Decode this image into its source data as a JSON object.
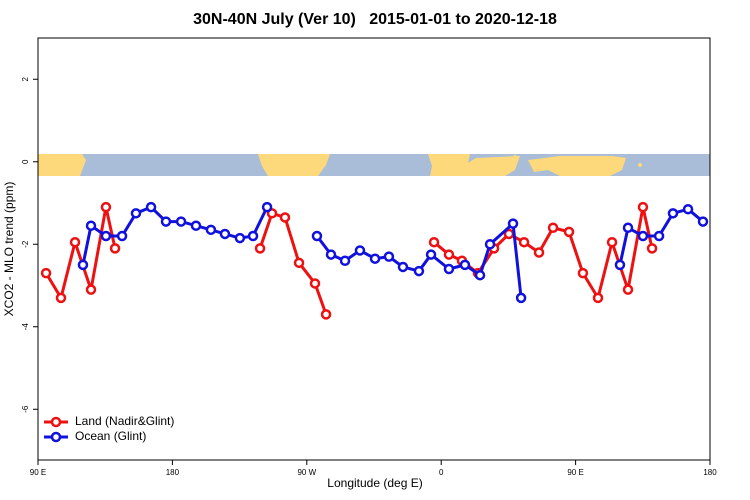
{
  "chart_data": {
    "type": "line",
    "title": "30N-40N July (Ver 10)   2015-01-01 to 2020-12-18",
    "xlabel": "Longitude (deg E)",
    "ylabel": "XCO2 - MLO trend (ppm)",
    "xlim": [
      90,
      540
    ],
    "xticks": [
      {
        "value": 90,
        "label": "90 E"
      },
      {
        "value": 180,
        "label": "180"
      },
      {
        "value": 270,
        "label": "90 W"
      },
      {
        "value": 360,
        "label": "0"
      },
      {
        "value": 450,
        "label": "90 E"
      },
      {
        "value": 540,
        "label": "180"
      }
    ],
    "ylim": [
      -7.23,
      3.0
    ],
    "yticks": [
      -6,
      -4,
      -2,
      0,
      2
    ],
    "legend": "bottom-left",
    "series": [
      {
        "name": "Land (Nadir&Glint)",
        "color": "#ee1111",
        "x": [
          95.4,
          105.4,
          114.8,
          125.5,
          135.5,
          141.6,
          null,
          238.7,
          246.7,
          255.4,
          264.8,
          275.5,
          282.9,
          null,
          355.2,
          365.2,
          373.9,
          384.6,
          395.4,
          405.4,
          415.5,
          425.5,
          434.9,
          445.6,
          454.9,
          465.0,
          474.4,
          485.1,
          495.1,
          501.2
        ],
        "values": [
          -2.7,
          -3.3,
          -1.95,
          -3.1,
          -1.1,
          -2.1,
          null,
          -2.1,
          -1.25,
          -1.35,
          -2.45,
          -2.95,
          -3.7,
          null,
          -1.95,
          -2.25,
          -2.4,
          -2.7,
          -2.1,
          -1.75,
          -1.95,
          -2.2,
          -1.6,
          -1.7,
          -2.7,
          -3.3,
          -1.95,
          -3.1,
          -1.1,
          -2.1
        ]
      },
      {
        "name": "Ocean (Glint)",
        "color": "#1111dd",
        "x": [
          120.1,
          125.5,
          135.5,
          146.3,
          155.6,
          165.7,
          175.7,
          185.8,
          195.8,
          205.8,
          215.2,
          225.2,
          234.0,
          243.4,
          null,
          276.8,
          286.2,
          295.6,
          305.6,
          315.7,
          325.0,
          334.4,
          345.1,
          353.2,
          365.2,
          375.9,
          386.0,
          392.7,
          408.1,
          413.5,
          null,
          479.7,
          485.1,
          495.1,
          505.9,
          515.2,
          525.3,
          535.3
        ],
        "values": [
          -2.5,
          -1.55,
          -1.8,
          -1.8,
          -1.25,
          -1.1,
          -1.45,
          -1.45,
          -1.55,
          -1.65,
          -1.75,
          -1.85,
          -1.8,
          -1.1,
          null,
          -1.8,
          -2.25,
          -2.4,
          -2.15,
          -2.35,
          -2.3,
          -2.55,
          -2.65,
          -2.25,
          -2.6,
          -2.5,
          -2.75,
          -2.0,
          -1.5,
          -3.3,
          null,
          -2.5,
          -1.6,
          -1.8,
          -1.8,
          -1.25,
          -1.15,
          -1.45
        ]
      }
    ]
  }
}
